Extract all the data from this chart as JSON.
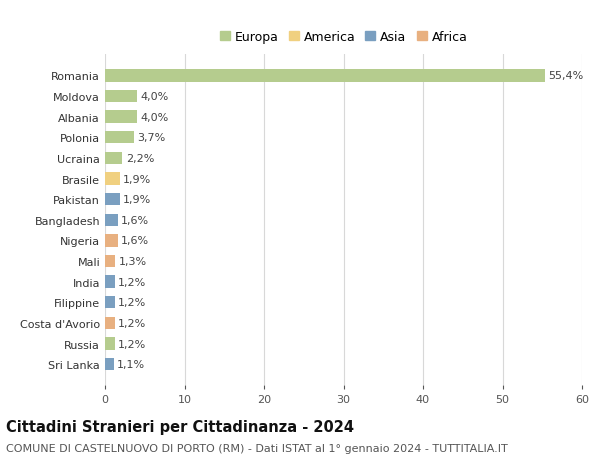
{
  "countries": [
    "Romania",
    "Moldova",
    "Albania",
    "Polonia",
    "Ucraina",
    "Brasile",
    "Pakistan",
    "Bangladesh",
    "Nigeria",
    "Mali",
    "India",
    "Filippine",
    "Costa d'Avorio",
    "Russia",
    "Sri Lanka"
  ],
  "values": [
    55.4,
    4.0,
    4.0,
    3.7,
    2.2,
    1.9,
    1.9,
    1.6,
    1.6,
    1.3,
    1.2,
    1.2,
    1.2,
    1.2,
    1.1
  ],
  "labels": [
    "55,4%",
    "4,0%",
    "4,0%",
    "3,7%",
    "2,2%",
    "1,9%",
    "1,9%",
    "1,6%",
    "1,6%",
    "1,3%",
    "1,2%",
    "1,2%",
    "1,2%",
    "1,2%",
    "1,1%"
  ],
  "continents": [
    "Europa",
    "Europa",
    "Europa",
    "Europa",
    "Europa",
    "America",
    "Asia",
    "Asia",
    "Africa",
    "Africa",
    "Asia",
    "Asia",
    "Africa",
    "Europa",
    "Asia"
  ],
  "colors": {
    "Europa": "#b5cc8e",
    "America": "#f0d080",
    "Asia": "#7a9fc0",
    "Africa": "#e8b080"
  },
  "legend_order": [
    "Europa",
    "America",
    "Asia",
    "Africa"
  ],
  "xlim": [
    0,
    60
  ],
  "xticks": [
    0,
    10,
    20,
    30,
    40,
    50,
    60
  ],
  "title": "Cittadini Stranieri per Cittadinanza - 2024",
  "subtitle": "COMUNE DI CASTELNUOVO DI PORTO (RM) - Dati ISTAT al 1° gennaio 2024 - TUTTITALIA.IT",
  "bg_color": "#ffffff",
  "grid_color": "#d8d8d8",
  "bar_height": 0.6,
  "title_fontsize": 10.5,
  "subtitle_fontsize": 8,
  "tick_fontsize": 8,
  "label_fontsize": 8,
  "legend_fontsize": 9
}
